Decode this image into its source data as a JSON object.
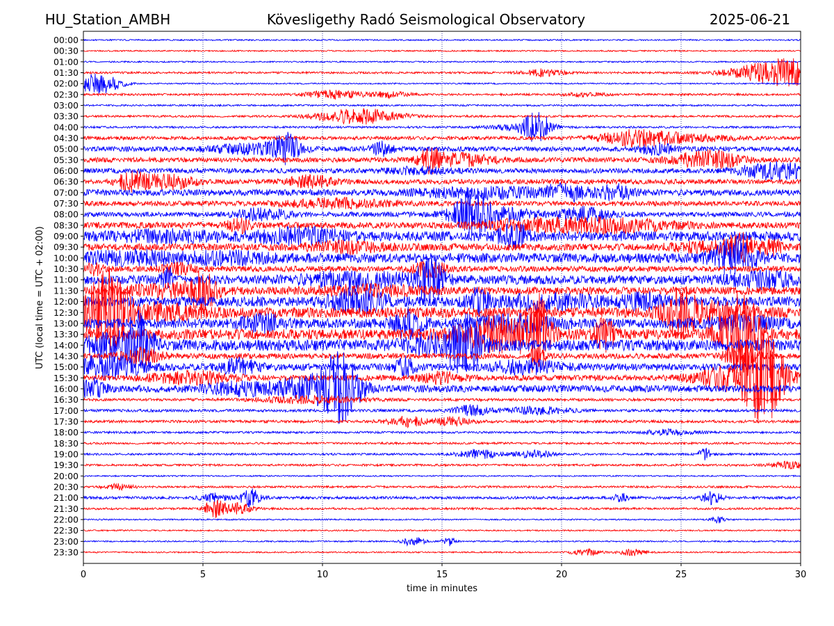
{
  "chart_data": {
    "type": "line",
    "title_left": "HU_Station_AMBH",
    "title": "Kövesligethy Radó Seismological Observatory",
    "title_right": "2025-06-21",
    "xlabel": "time in minutes",
    "ylabel": "UTC (local time = UTC + 02:00)",
    "xlim": [
      0,
      30
    ],
    "x_ticks": [
      0,
      5,
      10,
      15,
      20,
      25,
      30
    ],
    "x_tick_labels": [
      "0",
      "5",
      "10",
      "15",
      "20",
      "25",
      "30"
    ],
    "grid": "vertical dotted",
    "colors": {
      "even_rows": "#0000ff",
      "odd_rows": "#ff0000",
      "grid": "#000080"
    },
    "rows": [
      {
        "label": "00:00",
        "amplitude": 0.2
      },
      {
        "label": "00:30",
        "amplitude": 0.2
      },
      {
        "label": "01:00",
        "amplitude": 0.2
      },
      {
        "label": "01:30",
        "amplitude": 0.3,
        "bursts": [
          [
            29.4,
            4,
            1.4
          ],
          [
            19.3,
            1,
            0.6
          ]
        ]
      },
      {
        "label": "02:00",
        "amplitude": 0.2,
        "bursts": [
          [
            0.3,
            2,
            0.6
          ],
          [
            1.0,
            1.5,
            0.5
          ]
        ]
      },
      {
        "label": "02:30",
        "amplitude": 0.3,
        "bursts": [
          [
            10.5,
            1.2,
            0.8
          ],
          [
            12.8,
            0.8,
            0.6
          ],
          [
            21.0,
            0.5,
            0.6
          ]
        ]
      },
      {
        "label": "03:00",
        "amplitude": 0.25
      },
      {
        "label": "03:30",
        "amplitude": 0.3,
        "bursts": [
          [
            11.5,
            2.2,
            1.2
          ]
        ]
      },
      {
        "label": "04:00",
        "amplitude": 0.3,
        "bursts": [
          [
            19.0,
            4,
            0.4
          ],
          [
            18.2,
            1,
            0.8
          ]
        ]
      },
      {
        "label": "04:30",
        "amplitude": 0.5,
        "bursts": [
          [
            23.0,
            1.8,
            1.0
          ],
          [
            25.0,
            1,
            1.5
          ]
        ]
      },
      {
        "label": "05:00",
        "amplitude": 0.7,
        "bursts": [
          [
            8.5,
            4,
            0.4
          ],
          [
            7.0,
            1.2,
            1.2
          ],
          [
            12.5,
            2,
            0.3
          ],
          [
            24.0,
            1.5,
            0.5
          ]
        ]
      },
      {
        "label": "05:30",
        "amplitude": 0.7,
        "bursts": [
          [
            14.5,
            3,
            0.3
          ],
          [
            15.8,
            1.6,
            1.0
          ],
          [
            25.8,
            1.5,
            1.0
          ],
          [
            26.5,
            1.2,
            0.8
          ]
        ]
      },
      {
        "label": "06:00",
        "amplitude": 0.7,
        "bursts": [
          [
            29.0,
            2.5,
            1.0
          ],
          [
            14.0,
            0.8,
            1.0
          ]
        ]
      },
      {
        "label": "06:30",
        "amplitude": 0.7,
        "bursts": [
          [
            2.0,
            2.5,
            0.4
          ],
          [
            3.5,
            2,
            0.8
          ],
          [
            9.5,
            1.5,
            0.7
          ]
        ]
      },
      {
        "label": "07:00",
        "amplitude": 0.9,
        "bursts": [
          [
            20.2,
            2,
            0.6
          ],
          [
            22.3,
            2,
            0.5
          ],
          [
            17.0,
            1.3,
            2.0
          ]
        ]
      },
      {
        "label": "07:30",
        "amplitude": 0.7,
        "bursts": [
          [
            10.5,
            1.2,
            1.5
          ]
        ]
      },
      {
        "label": "08:00",
        "amplitude": 0.7,
        "bursts": [
          [
            16.3,
            5,
            0.6
          ],
          [
            21.0,
            1.8,
            0.7
          ],
          [
            7.5,
            1.5,
            0.8
          ],
          [
            17.5,
            1.5,
            1.2
          ]
        ]
      },
      {
        "label": "08:30",
        "amplitude": 0.9,
        "bursts": [
          [
            6.5,
            2,
            0.3
          ],
          [
            22.0,
            1.8,
            1.8
          ],
          [
            18.5,
            1.3,
            1.2
          ]
        ]
      },
      {
        "label": "09:00",
        "amplitude": 1.4,
        "bursts": [
          [
            18.0,
            3.5,
            0.4
          ],
          [
            9.0,
            1.8,
            1.2
          ],
          [
            3.5,
            1.2,
            1.5
          ]
        ]
      },
      {
        "label": "09:30",
        "amplitude": 1.0,
        "bursts": [
          [
            27.5,
            3.5,
            0.4
          ],
          [
            28.8,
            2,
            0.3
          ],
          [
            11.0,
            1.3,
            1.2
          ],
          [
            26.0,
            1.2,
            1.0
          ]
        ]
      },
      {
        "label": "10:00",
        "amplitude": 1.4,
        "bursts": [
          [
            27.2,
            5,
            0.6
          ],
          [
            2.0,
            1.4,
            1.5
          ],
          [
            6.0,
            1.2,
            1.2
          ]
        ]
      },
      {
        "label": "10:30",
        "amplitude": 0.8,
        "bursts": [
          [
            14.5,
            2,
            0.5
          ],
          [
            0.5,
            1.5,
            0.3
          ],
          [
            4.0,
            1.3,
            0.5
          ]
        ]
      },
      {
        "label": "11:00",
        "amplitude": 1.3,
        "bursts": [
          [
            14.5,
            6,
            0.4
          ],
          [
            3.5,
            3,
            0.2
          ],
          [
            11.5,
            2,
            1.5
          ],
          [
            28.5,
            1.8,
            1.0
          ]
        ]
      },
      {
        "label": "11:30",
        "amplitude": 1.1,
        "bursts": [
          [
            5.0,
            5,
            0.4
          ],
          [
            3.5,
            1.6,
            1.2
          ],
          [
            12.0,
            1.2,
            1.5
          ]
        ]
      },
      {
        "label": "12:00",
        "amplitude": 1.4,
        "bursts": [
          [
            11.5,
            3,
            0.8
          ],
          [
            16.5,
            3,
            0.3
          ],
          [
            23.5,
            2,
            0.6
          ],
          [
            19.5,
            1.6,
            1.5
          ]
        ]
      },
      {
        "label": "12:30",
        "amplitude": 1.5,
        "bursts": [
          [
            1.0,
            12,
            0.6
          ],
          [
            25.0,
            6,
            0.5
          ],
          [
            26.5,
            2,
            1.0
          ],
          [
            3.0,
            1.8,
            1.2
          ]
        ]
      },
      {
        "label": "13:00",
        "amplitude": 1.4,
        "bursts": [
          [
            13.6,
            4,
            0.4
          ],
          [
            7.5,
            2,
            0.6
          ],
          [
            18.0,
            1.8,
            1.2
          ],
          [
            27.5,
            1.5,
            1.0
          ]
        ]
      },
      {
        "label": "13:30",
        "amplitude": 1.5,
        "bursts": [
          [
            27.5,
            12,
            0.6
          ],
          [
            19.0,
            10,
            0.3
          ],
          [
            21.8,
            4,
            0.3
          ],
          [
            18.0,
            3,
            1.0
          ],
          [
            17.0,
            2.5,
            1.2
          ]
        ]
      },
      {
        "label": "14:00",
        "amplitude": 1.6,
        "bursts": [
          [
            2.3,
            8,
            0.4
          ],
          [
            16.0,
            7,
            0.4
          ],
          [
            1.0,
            2.5,
            0.8
          ],
          [
            15.0,
            2.5,
            1.0
          ]
        ]
      },
      {
        "label": "14:30",
        "amplitude": 0.8,
        "bursts": [
          [
            2.4,
            2,
            0.6
          ],
          [
            27.5,
            5,
            0.4
          ],
          [
            19.0,
            3,
            0.2
          ]
        ]
      },
      {
        "label": "15:00",
        "amplitude": 1.0,
        "bursts": [
          [
            1.0,
            3,
            1.0
          ],
          [
            6.5,
            2,
            0.6
          ],
          [
            13.5,
            2.5,
            0.3
          ],
          [
            18.5,
            1.8,
            1.0
          ]
        ]
      },
      {
        "label": "15:30",
        "amplitude": 0.8,
        "bursts": [
          [
            28.5,
            12,
            0.6
          ],
          [
            27.0,
            3,
            1.0
          ],
          [
            4.5,
            1.6,
            1.2
          ],
          [
            15.0,
            1.4,
            0.6
          ]
        ]
      },
      {
        "label": "16:00",
        "amplitude": 1.0,
        "bursts": [
          [
            10.7,
            10,
            0.6
          ],
          [
            9.0,
            2.5,
            0.8
          ],
          [
            0.3,
            2.5,
            0.4
          ],
          [
            6.5,
            1.5,
            1.0
          ]
        ]
      },
      {
        "label": "16:30",
        "amplitude": 0.4,
        "bursts": [
          [
            9.5,
            1,
            1.5
          ]
        ]
      },
      {
        "label": "17:00",
        "amplitude": 0.4,
        "bursts": [
          [
            16.2,
            1.5,
            0.5
          ],
          [
            19.0,
            1,
            1.0
          ]
        ]
      },
      {
        "label": "17:30",
        "amplitude": 0.4,
        "bursts": [
          [
            13.5,
            1.4,
            0.6
          ],
          [
            15.5,
            1.2,
            0.5
          ]
        ]
      },
      {
        "label": "18:00",
        "amplitude": 0.3,
        "bursts": [
          [
            24.5,
            0.8,
            0.8
          ]
        ]
      },
      {
        "label": "18:30",
        "amplitude": 0.3
      },
      {
        "label": "19:00",
        "amplitude": 0.3,
        "bursts": [
          [
            16.5,
            1.3,
            0.6
          ],
          [
            18.8,
            1,
            0.6
          ],
          [
            26.0,
            1.5,
            0.2
          ]
        ]
      },
      {
        "label": "19:30",
        "amplitude": 0.3,
        "bursts": [
          [
            29.5,
            1,
            0.5
          ]
        ]
      },
      {
        "label": "20:00",
        "amplitude": 0.2
      },
      {
        "label": "20:30",
        "amplitude": 0.3,
        "bursts": [
          [
            1.5,
            0.8,
            0.4
          ]
        ]
      },
      {
        "label": "21:00",
        "amplitude": 0.4,
        "bursts": [
          [
            7.0,
            2.5,
            0.3
          ],
          [
            5.5,
            1.2,
            0.4
          ],
          [
            26.3,
            1.8,
            0.3
          ],
          [
            22.5,
            1.3,
            0.2
          ]
        ]
      },
      {
        "label": "21:30",
        "amplitude": 0.3,
        "bursts": [
          [
            5.5,
            2.5,
            0.3
          ],
          [
            6.5,
            1.5,
            0.4
          ]
        ]
      },
      {
        "label": "22:00",
        "amplitude": 0.2,
        "bursts": [
          [
            26.5,
            1,
            0.2
          ]
        ]
      },
      {
        "label": "22:30",
        "amplitude": 0.2
      },
      {
        "label": "23:00",
        "amplitude": 0.2,
        "bursts": [
          [
            13.8,
            1.5,
            0.3
          ],
          [
            15.3,
            1.3,
            0.2
          ]
        ]
      },
      {
        "label": "23:30",
        "amplitude": 0.2,
        "bursts": [
          [
            21.0,
            1,
            0.4
          ],
          [
            23.0,
            1,
            0.4
          ]
        ]
      }
    ]
  }
}
